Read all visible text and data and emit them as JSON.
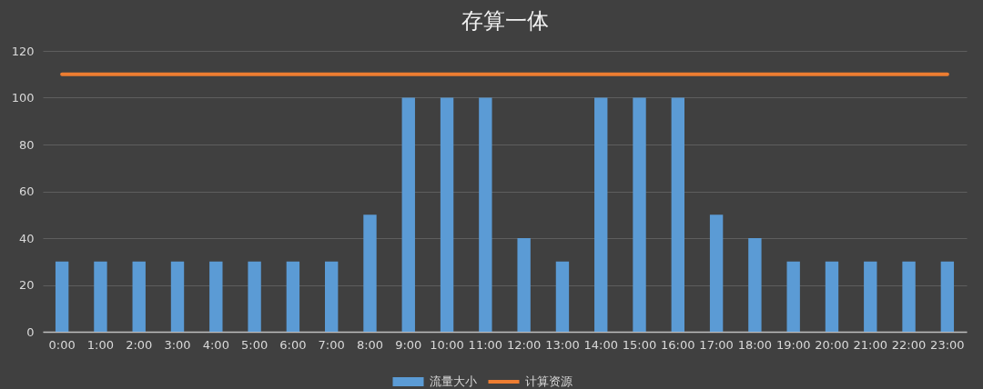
{
  "chart_data": {
    "type": "bar",
    "title": "存算一体",
    "categories": [
      "0:00",
      "1:00",
      "2:00",
      "3:00",
      "4:00",
      "5:00",
      "6:00",
      "7:00",
      "8:00",
      "9:00",
      "10:00",
      "11:00",
      "12:00",
      "13:00",
      "14:00",
      "15:00",
      "16:00",
      "17:00",
      "18:00",
      "19:00",
      "20:00",
      "21:00",
      "22:00",
      "23:00"
    ],
    "series": [
      {
        "name": "流量大小",
        "color": "#5b9bd5",
        "values": [
          30,
          30,
          30,
          30,
          30,
          30,
          30,
          30,
          50,
          100,
          100,
          100,
          40,
          30,
          100,
          100,
          100,
          50,
          40,
          30,
          30,
          30,
          30,
          30
        ]
      },
      {
        "name": "计算资源",
        "type": "line",
        "color": "#ed7d31",
        "values": [
          110,
          110,
          110,
          110,
          110,
          110,
          110,
          110,
          110,
          110,
          110,
          110,
          110,
          110,
          110,
          110,
          110,
          110,
          110,
          110,
          110,
          110,
          110,
          110
        ]
      }
    ],
    "ylim": [
      0,
      120
    ],
    "yticks": [
      0,
      20,
      40,
      60,
      80,
      100,
      120
    ],
    "grid": "y",
    "legend": "bottom"
  }
}
